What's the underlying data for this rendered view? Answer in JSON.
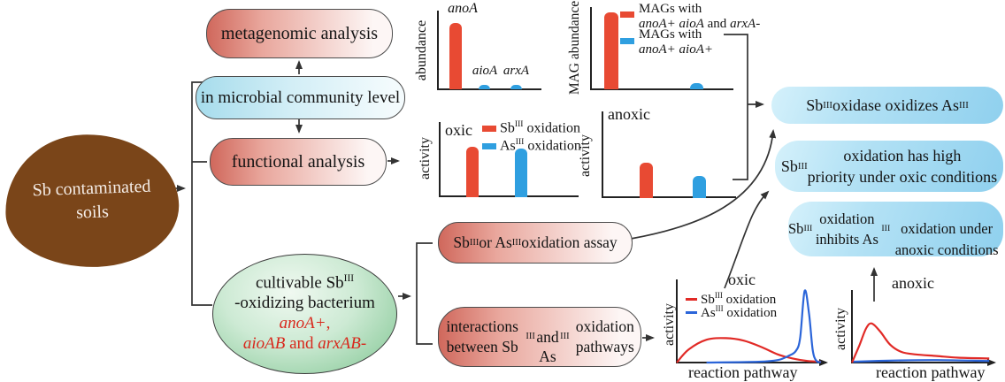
{
  "blob": {
    "label": "Sb contaminated\nsoils"
  },
  "boxes": {
    "metagenomic": "metagenomic analysis",
    "community": "in microbial community level",
    "functional": "functional analysis",
    "assay": "Sb^III^ or As^III^ oxidation assay",
    "interactions": "interactions between Sb^III^\nand As^III^ oxidation pathways",
    "bacterium": {
      "line1": "cultivable Sb^III^",
      "line2": "-oxidizing bacterium",
      "line3": "*anoA+*,",
      "line4": "*aioAB* and *arxAB-*"
    }
  },
  "conclusions": [
    "Sb^III^ oxidase oxidizes As^III^",
    "Sb^III^ oxidation has high\npriority under oxic conditions",
    "Sb^III^ oxidation inhibits As^III^\noxidation under anoxic conditions"
  ],
  "colors": {
    "red": "#e84a33",
    "blue": "#2f9fe0",
    "line_red": "#e12a26",
    "line_blue": "#2b65d9",
    "brown": "#7a4519"
  },
  "chart_data": [
    {
      "id": "gene_abundance",
      "type": "bar",
      "ylabel": "abundance",
      "categories": [
        "anoA",
        "aioA",
        "arxA"
      ],
      "values": [
        0.83,
        0.06,
        0.05
      ],
      "colors": [
        "#e84a33",
        "#2f9fe0",
        "#2f9fe0"
      ],
      "ylim": [
        0,
        1
      ],
      "grid": false
    },
    {
      "id": "mag_abundance",
      "type": "bar",
      "ylabel": "MAG abundance",
      "series": [
        {
          "name": "MAGs with\n*anoA+* *aioA* and *arxA-*",
          "value": 0.95,
          "color": "#e84a33"
        },
        {
          "name": "MAGs with\n*anoA+* *aioA+*",
          "value": 0.08,
          "color": "#2f9fe0"
        }
      ],
      "ylim": [
        0,
        1
      ],
      "legend_position": "right",
      "grid": false
    },
    {
      "id": "oxic_activity",
      "type": "bar",
      "title": "oxic",
      "ylabel": "activity",
      "series": [
        {
          "name": "Sb^III^ oxidation",
          "value": 0.68,
          "color": "#e84a33"
        },
        {
          "name": "As^III^ oxidation",
          "value": 0.655,
          "color": "#2f9fe0"
        }
      ],
      "ylim": [
        0,
        1
      ],
      "legend_position": "top",
      "grid": false
    },
    {
      "id": "anoxic_activity",
      "type": "bar",
      "title": "anoxic",
      "ylabel": "activity",
      "series": [
        {
          "name": "Sb^III^ oxidation",
          "value": 0.45,
          "color": "#e84a33"
        },
        {
          "name": "As^III^ oxidation",
          "value": 0.28,
          "color": "#2f9fe0"
        }
      ],
      "ylim": [
        0,
        1
      ],
      "grid": false
    },
    {
      "id": "oxic_pathway",
      "type": "line",
      "title": "oxic",
      "xlabel": "reaction pathway",
      "ylabel": "activity",
      "legend_position": "top-left",
      "grid": false,
      "ylim": [
        0,
        1
      ],
      "series": [
        {
          "name": "Sb^III^ oxidation",
          "color": "#e12a26",
          "points": [
            [
              0,
              0
            ],
            [
              0.08,
              0.16
            ],
            [
              0.2,
              0.28
            ],
            [
              0.33,
              0.3
            ],
            [
              0.45,
              0.27
            ],
            [
              0.57,
              0.19
            ],
            [
              0.68,
              0.1
            ],
            [
              0.78,
              0.05
            ],
            [
              0.88,
              0.02
            ],
            [
              0.97,
              0.01
            ]
          ]
        },
        {
          "name": "As^III^ oxidation",
          "color": "#2b65d9",
          "points": [
            [
              0.2,
              0
            ],
            [
              0.55,
              0.01
            ],
            [
              0.68,
              0.03
            ],
            [
              0.75,
              0.08
            ],
            [
              0.8,
              0.14
            ],
            [
              0.83,
              0.3
            ],
            [
              0.86,
              0.88
            ],
            [
              0.89,
              0.6
            ],
            [
              0.915,
              0.15
            ],
            [
              0.94,
              0.02
            ],
            [
              0.97,
              0.005
            ]
          ]
        }
      ]
    },
    {
      "id": "anoxic_pathway",
      "type": "line",
      "title": "anoxic",
      "xlabel": "reaction pathway",
      "ylabel": "activity",
      "grid": false,
      "ylim": [
        0,
        1
      ],
      "series": [
        {
          "name": "Sb^III^ oxidation",
          "color": "#e12a26",
          "points": [
            [
              0,
              0
            ],
            [
              0.05,
              0.2
            ],
            [
              0.1,
              0.42
            ],
            [
              0.14,
              0.48
            ],
            [
              0.2,
              0.38
            ],
            [
              0.27,
              0.22
            ],
            [
              0.35,
              0.13
            ],
            [
              0.45,
              0.1
            ],
            [
              0.6,
              0.08
            ],
            [
              0.75,
              0.06
            ],
            [
              0.97,
              0.05
            ]
          ]
        },
        {
          "name": "As^III^ oxidation",
          "color": "#2b65d9",
          "points": [
            [
              0,
              0.01
            ],
            [
              0.3,
              0.025
            ],
            [
              0.6,
              0.03
            ],
            [
              0.97,
              0.02
            ]
          ]
        }
      ]
    }
  ]
}
